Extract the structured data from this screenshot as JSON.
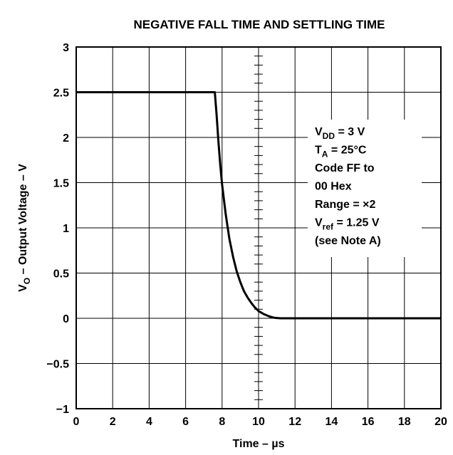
{
  "chart_data": {
    "type": "line",
    "title": "NEGATIVE FALL TIME AND SETTLING TIME",
    "xlabel": "Time – µs",
    "ylabel": "VO – Output Voltage – V",
    "ylabel_parts": {
      "main": "V",
      "sub": "O",
      "rest": " – Output Voltage – V"
    },
    "xlim": [
      0,
      20
    ],
    "ylim": [
      -1,
      3
    ],
    "x_ticks": [
      "0",
      "2",
      "4",
      "6",
      "8",
      "10",
      "12",
      "14",
      "16",
      "18",
      "20"
    ],
    "y_ticks": [
      "3",
      "2.5",
      "2",
      "1.5",
      "1",
      "0.5",
      "0",
      "−0.5",
      "−1"
    ],
    "grid": true,
    "legend": "none",
    "series": [
      {
        "x": [
          0,
          7.6,
          7.7,
          7.8,
          7.9,
          8.0,
          8.2,
          8.4,
          8.6,
          8.8,
          9.0,
          9.2,
          9.4,
          9.6,
          9.8,
          10.0,
          10.3,
          10.6,
          10.9,
          11.2,
          12,
          14,
          16,
          18,
          20
        ],
        "y": [
          2.5,
          2.5,
          2.25,
          1.95,
          1.7,
          1.48,
          1.15,
          0.88,
          0.68,
          0.52,
          0.4,
          0.3,
          0.23,
          0.17,
          0.12,
          0.08,
          0.045,
          0.02,
          0.005,
          0,
          0,
          0,
          0,
          0,
          0
        ]
      }
    ],
    "annotation": [
      {
        "main": "V",
        "sub": "DD",
        "rest": " = 3 V"
      },
      {
        "main": "T",
        "sub": "A",
        "rest": " = 25°C"
      },
      {
        "main": "Code FF to",
        "sub": "",
        "rest": ""
      },
      {
        "main": "00 Hex",
        "sub": "",
        "rest": ""
      },
      {
        "main": "Range = ×2",
        "sub": "",
        "rest": ""
      },
      {
        "main": "V",
        "sub": "ref",
        "rest": " = 1.25 V"
      },
      {
        "main": "(see Note A)",
        "sub": "",
        "rest": ""
      }
    ]
  }
}
